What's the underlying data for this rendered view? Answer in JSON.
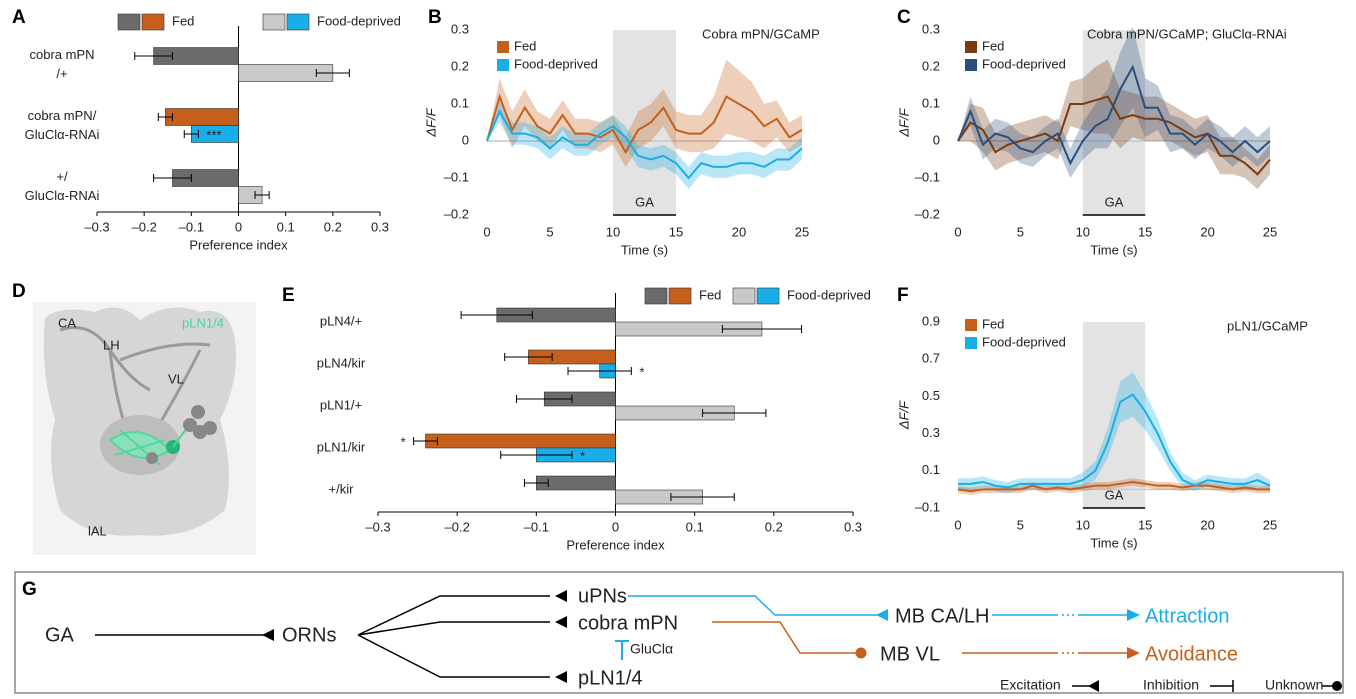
{
  "chart_data": [
    {
      "panel": "A",
      "type": "hbar",
      "xlabel": "Preference index",
      "categories": [
        [
          "cobra mPN",
          "/+"
        ],
        [
          "cobra mPN/",
          "GluClα-RNAi"
        ],
        [
          "+/",
          "GluClα-RNAi"
        ]
      ],
      "series": [
        {
          "name": "Fed",
          "legend_colors": [
            "#6b6b6b",
            "#c65f1c"
          ],
          "colors": [
            "#6b6b6b",
            "#c65f1c",
            "#6b6b6b"
          ],
          "values": [
            -0.18,
            -0.155,
            -0.14
          ],
          "errors": [
            0.04,
            0.015,
            0.04
          ]
        },
        {
          "name": "Food-deprived",
          "legend_colors": [
            "#c9c9c9",
            "#1aaee8"
          ],
          "colors": [
            "#c9c9c9",
            "#1aaee8",
            "#c9c9c9"
          ],
          "values": [
            0.2,
            -0.1,
            0.05
          ],
          "errors": [
            0.035,
            0.015,
            0.015
          ],
          "significance": [
            null,
            "***",
            null
          ]
        }
      ],
      "xlim": [
        -0.3,
        0.3
      ],
      "xticks": [
        {
          "value": -0.3,
          "label": "–0.3"
        },
        {
          "value": -0.2,
          "label": "–0.2"
        },
        {
          "value": -0.1,
          "label": "–0.1"
        },
        0,
        0.1,
        0.2,
        0.3
      ]
    },
    {
      "panel": "B",
      "type": "line",
      "title": "Cobra mPN/GCaMP",
      "xlabel": "Time (s)",
      "ylabel": "ΔF/F",
      "x": [
        0,
        1,
        2,
        3,
        4,
        5,
        6,
        7,
        8,
        9,
        10,
        11,
        12,
        13,
        14,
        15,
        16,
        17,
        18,
        19,
        20,
        21,
        22,
        23,
        24,
        25
      ],
      "series": [
        {
          "name": "Fed",
          "color": "#c65f1c",
          "values": [
            0,
            0.12,
            0.03,
            0.09,
            0.04,
            0.02,
            0.07,
            0.02,
            0.02,
            0.01,
            0.03,
            -0.03,
            0.03,
            0.05,
            0.09,
            0.03,
            0.02,
            0.02,
            0.05,
            0.12,
            0.1,
            0.08,
            0.04,
            0.06,
            0.01,
            0.03
          ],
          "errors": [
            0,
            0.05,
            0.05,
            0.05,
            0.04,
            0.04,
            0.04,
            0.04,
            0.04,
            0.04,
            0.04,
            0.04,
            0.05,
            0.05,
            0.05,
            0.05,
            0.05,
            0.05,
            0.07,
            0.1,
            0.09,
            0.08,
            0.06,
            0.05,
            0.04,
            0.04
          ]
        },
        {
          "name": "Food-deprived",
          "color": "#1aaee8",
          "values": [
            0,
            0.08,
            0.02,
            0.02,
            0.01,
            -0.02,
            0.01,
            -0.01,
            -0.01,
            0.02,
            0.04,
            0.01,
            -0.04,
            -0.05,
            -0.04,
            -0.06,
            -0.1,
            -0.06,
            -0.07,
            -0.07,
            -0.06,
            -0.06,
            -0.07,
            -0.05,
            -0.05,
            -0.02
          ],
          "errors": [
            0,
            0.03,
            0.03,
            0.03,
            0.03,
            0.03,
            0.03,
            0.03,
            0.03,
            0.03,
            0.03,
            0.03,
            0.03,
            0.03,
            0.03,
            0.03,
            0.03,
            0.03,
            0.03,
            0.03,
            0.03,
            0.03,
            0.03,
            0.03,
            0.03,
            0.03
          ]
        }
      ],
      "shaded_region": {
        "range": [
          10,
          15
        ],
        "label": "GA"
      },
      "xlim": [
        0,
        25
      ],
      "xticks": [
        0,
        5,
        10,
        15,
        20,
        25
      ],
      "ylim": [
        -0.2,
        0.3
      ],
      "yticks": [
        {
          "value": -0.2,
          "label": "–0.2"
        },
        {
          "value": -0.1,
          "label": "–0.1"
        },
        0,
        0.1,
        0.2,
        0.3
      ]
    },
    {
      "panel": "C",
      "type": "line",
      "title": "Cobra mPN/GCaMP; GluClα-RNAi",
      "xlabel": "Time (s)",
      "ylabel": "ΔF/F",
      "x": [
        0,
        1,
        2,
        3,
        4,
        5,
        6,
        7,
        8,
        9,
        10,
        11,
        12,
        13,
        14,
        15,
        16,
        17,
        18,
        19,
        20,
        21,
        22,
        23,
        24,
        25
      ],
      "series": [
        {
          "name": "Fed",
          "color": "#7b3a14",
          "values": [
            0,
            0.05,
            0.03,
            -0.03,
            -0.01,
            0,
            0.01,
            0.02,
            0,
            0.1,
            0.1,
            0.11,
            0.12,
            0.06,
            0.07,
            0.06,
            0.06,
            0.05,
            0.03,
            0.01,
            0.02,
            -0.04,
            -0.04,
            -0.06,
            -0.09,
            -0.05
          ],
          "errors": [
            0,
            0.05,
            0.06,
            0.05,
            0.05,
            0.05,
            0.05,
            0.05,
            0.05,
            0.06,
            0.07,
            0.09,
            0.1,
            0.08,
            0.06,
            0.06,
            0.06,
            0.05,
            0.05,
            0.05,
            0.05,
            0.05,
            0.05,
            0.04,
            0.04,
            0.04
          ]
        },
        {
          "name": "Food-deprived",
          "color": "#2a4f7f",
          "values": [
            0,
            0.08,
            -0.01,
            0.02,
            0.01,
            -0.02,
            -0.03,
            0,
            0.02,
            -0.06,
            0,
            0.04,
            0.06,
            0.14,
            0.2,
            0.09,
            0.09,
            0.02,
            0.02,
            -0.01,
            0.02,
            0,
            -0.03,
            0,
            -0.03,
            0
          ],
          "errors": [
            0,
            0.04,
            0.04,
            0.04,
            0.04,
            0.04,
            0.04,
            0.04,
            0.04,
            0.04,
            0.05,
            0.06,
            0.08,
            0.1,
            0.11,
            0.08,
            0.06,
            0.05,
            0.04,
            0.04,
            0.04,
            0.04,
            0.04,
            0.04,
            0.04,
            0.04
          ]
        }
      ],
      "shaded_region": {
        "range": [
          10,
          15
        ],
        "label": "GA"
      },
      "xlim": [
        0,
        25
      ],
      "xticks": [
        0,
        5,
        10,
        15,
        20,
        25
      ],
      "ylim": [
        -0.2,
        0.3
      ],
      "yticks": [
        {
          "value": -0.2,
          "label": "–0.2"
        },
        {
          "value": -0.1,
          "label": "–0.1"
        },
        0,
        0.1,
        0.2,
        0.3
      ]
    },
    {
      "panel": "E",
      "type": "hbar",
      "xlabel": "Preference index",
      "categories": [
        "pLN4/+",
        "pLN4/kir",
        "pLN1/+",
        "pLN1/kir",
        "+/kir"
      ],
      "series": [
        {
          "name": "Fed",
          "legend_colors": [
            "#6b6b6b",
            "#c65f1c"
          ],
          "colors": [
            "#6b6b6b",
            "#c65f1c",
            "#6b6b6b",
            "#c65f1c",
            "#6b6b6b"
          ],
          "values": [
            -0.15,
            -0.11,
            -0.09,
            -0.24,
            -0.1
          ],
          "errors": [
            0.045,
            0.03,
            0.035,
            0.015,
            0.015
          ],
          "significance": [
            null,
            null,
            null,
            "*",
            null
          ]
        },
        {
          "name": "Food-deprived",
          "legend_colors": [
            "#c9c9c9",
            "#1aaee8"
          ],
          "colors": [
            "#c9c9c9",
            "#1aaee8",
            "#c9c9c9",
            "#1aaee8",
            "#c9c9c9"
          ],
          "values": [
            0.185,
            -0.02,
            0.15,
            -0.1,
            0.11
          ],
          "errors": [
            0.05,
            0.04,
            0.04,
            0.045,
            0.04
          ],
          "significance": [
            null,
            "*",
            null,
            "*",
            null
          ]
        }
      ],
      "xlim": [
        -0.3,
        0.3
      ],
      "xticks": [
        {
          "value": -0.3,
          "label": "–0.3"
        },
        {
          "value": -0.2,
          "label": "–0.2"
        },
        {
          "value": -0.1,
          "label": "–0.1"
        },
        0,
        0.1,
        0.2,
        0.3
      ]
    },
    {
      "panel": "F",
      "type": "line",
      "title": "pLN1/GCaMP",
      "xlabel": "Time (s)",
      "ylabel": "ΔF/F",
      "x": [
        0,
        1,
        2,
        3,
        4,
        5,
        6,
        7,
        8,
        9,
        10,
        11,
        12,
        13,
        14,
        15,
        16,
        17,
        18,
        19,
        20,
        21,
        22,
        23,
        24,
        25
      ],
      "series": [
        {
          "name": "Fed",
          "color": "#c65f1c",
          "values": [
            0,
            -0.01,
            0,
            0,
            0,
            0,
            0.02,
            0,
            0.01,
            0,
            0.01,
            0.02,
            0.02,
            0.03,
            0.04,
            0.03,
            0.02,
            0.02,
            0.01,
            0.02,
            0.02,
            0.01,
            0,
            0.01,
            0,
            0
          ],
          "errors": [
            0.02,
            0.02,
            0.02,
            0.02,
            0.02,
            0.02,
            0.02,
            0.02,
            0.02,
            0.02,
            0.02,
            0.02,
            0.02,
            0.02,
            0.02,
            0.02,
            0.02,
            0.02,
            0.02,
            0.02,
            0.02,
            0.02,
            0.02,
            0.02,
            0.02,
            0.02
          ]
        },
        {
          "name": "Food-deprived",
          "color": "#1aaee8",
          "values": [
            0.03,
            0.03,
            0.04,
            0.02,
            0.01,
            0.03,
            0.03,
            0.03,
            0.03,
            0.03,
            0.05,
            0.1,
            0.25,
            0.47,
            0.51,
            0.42,
            0.3,
            0.15,
            0.05,
            0.02,
            0.05,
            0.04,
            0.03,
            0.03,
            0.05,
            0.02
          ],
          "errors": [
            0.03,
            0.03,
            0.03,
            0.03,
            0.03,
            0.03,
            0.03,
            0.03,
            0.03,
            0.03,
            0.04,
            0.05,
            0.08,
            0.11,
            0.12,
            0.1,
            0.08,
            0.05,
            0.04,
            0.03,
            0.03,
            0.03,
            0.03,
            0.03,
            0.04,
            0.03
          ]
        }
      ],
      "shaded_region": {
        "range": [
          10,
          15
        ],
        "label": "GA"
      },
      "xlim": [
        0,
        25
      ],
      "xticks": [
        0,
        5,
        10,
        15,
        20,
        25
      ],
      "ylim": [
        -0.1,
        0.9
      ],
      "yticks": [
        {
          "value": -0.1,
          "label": "–0.1"
        },
        0.1,
        0.3,
        0.5,
        0.7,
        0.9
      ]
    }
  ],
  "panel_d": {
    "panel": "D",
    "labels": [
      "CA",
      "LH",
      "VL",
      "pLN1/4",
      "lAL"
    ]
  },
  "diagram": {
    "panel": "G",
    "nodes": [
      "GA",
      "ORNs",
      "uPNs",
      "cobra mPN",
      "pLN1/4",
      "MB CA/LH",
      "MB VL",
      "Attraction",
      "Avoidance"
    ],
    "inhibitor": "GluClα",
    "legend": [
      "Excitation",
      "Inhibition",
      "Unknown"
    ]
  }
}
